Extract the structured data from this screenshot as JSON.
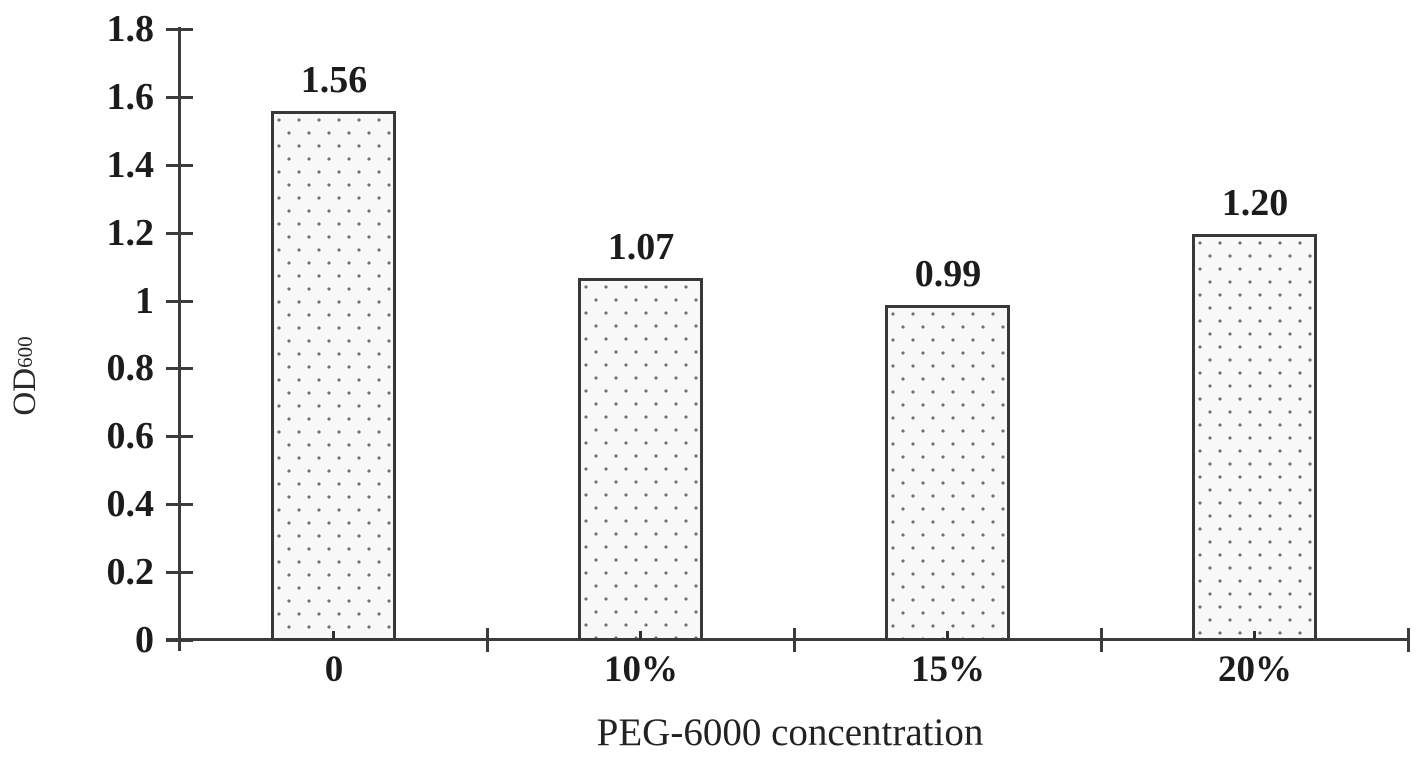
{
  "chart_data": {
    "type": "bar",
    "title": "",
    "xlabel": "PEG-6000 concentration",
    "ylabel": {
      "text": "OD",
      "subscript": "600"
    },
    "categories": [
      "0",
      "10%",
      "15%",
      "20%"
    ],
    "values": [
      1.56,
      1.07,
      0.99,
      1.2
    ],
    "value_labels": [
      "1.56",
      "1.07",
      "0.99",
      "1.20"
    ],
    "y_ticks": [
      "0",
      "0.2",
      "0.4",
      "0.6",
      "0.8",
      "1",
      "1.2",
      "1.4",
      "1.6",
      "1.8"
    ],
    "y_tick_values": [
      0,
      0.2,
      0.4,
      0.6,
      0.8,
      1.0,
      1.2,
      1.4,
      1.6,
      1.8
    ],
    "ylim": [
      0,
      1.8
    ],
    "grid": false,
    "legend": null,
    "style": {
      "background": "#ffffff",
      "axis_color": "#3c3c3c",
      "text_color": "#1c1c1c",
      "bar_fill": "#f8f8f8",
      "bar_dot_color": "#6f6f6f",
      "bar_border_color": "#383838"
    }
  }
}
